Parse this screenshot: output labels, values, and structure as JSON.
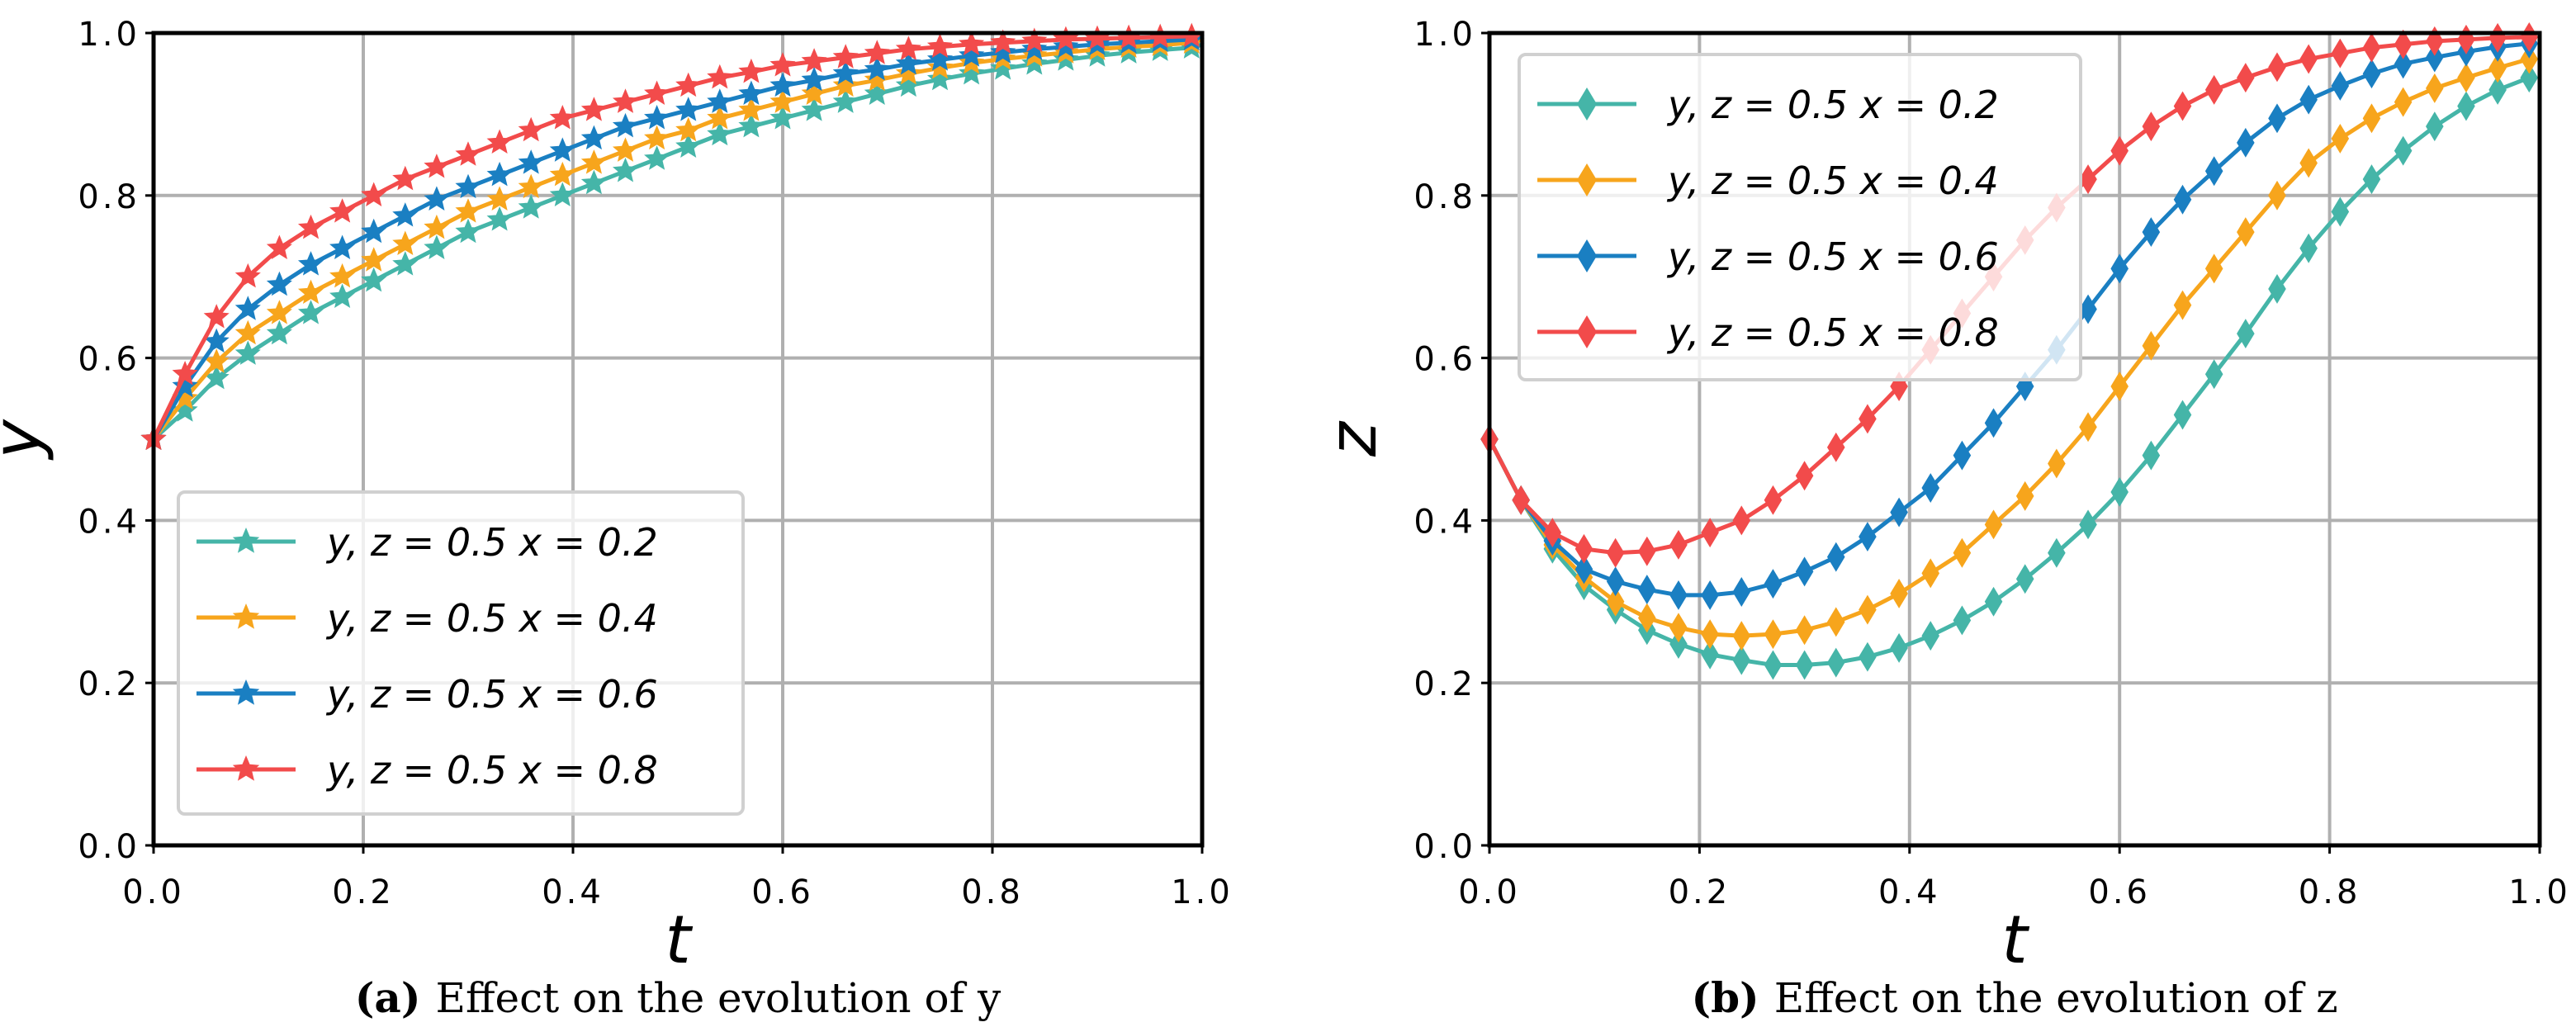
{
  "colors": {
    "teal": "#45b5a8",
    "orange": "#f7a51c",
    "blue": "#1a7fc2",
    "red": "#f24b4b",
    "grid": "#b0b0b0"
  },
  "chart_data": [
    {
      "type": "line",
      "panel": "(a)",
      "title": "Effect on the evolution of y",
      "xlabel": "t",
      "ylabel": "y",
      "xlim": [
        0,
        1
      ],
      "ylim": [
        0,
        1
      ],
      "xticks": [
        "0.0",
        "0.2",
        "0.4",
        "0.6",
        "0.8",
        "1.0"
      ],
      "yticks": [
        "0.0",
        "0.2",
        "0.4",
        "0.6",
        "0.8",
        "1.0"
      ],
      "grid": true,
      "legend_position": "lower-left",
      "marker": "star",
      "t_start": 0,
      "t_step": 0.03,
      "series": [
        {
          "name": "y, z = 0.5  x = 0.2",
          "color": "teal",
          "values": [
            0.5,
            0.535,
            0.575,
            0.605,
            0.63,
            0.655,
            0.675,
            0.695,
            0.715,
            0.735,
            0.755,
            0.77,
            0.785,
            0.8,
            0.815,
            0.83,
            0.845,
            0.86,
            0.875,
            0.885,
            0.895,
            0.905,
            0.915,
            0.925,
            0.935,
            0.943,
            0.95,
            0.956,
            0.962,
            0.967,
            0.972,
            0.976,
            0.979,
            0.982
          ]
        },
        {
          "name": "y, z = 0.5  x = 0.4",
          "color": "orange",
          "values": [
            0.5,
            0.55,
            0.595,
            0.63,
            0.655,
            0.68,
            0.7,
            0.72,
            0.74,
            0.76,
            0.78,
            0.795,
            0.81,
            0.825,
            0.84,
            0.855,
            0.87,
            0.88,
            0.895,
            0.905,
            0.915,
            0.925,
            0.935,
            0.942,
            0.95,
            0.957,
            0.963,
            0.968,
            0.972,
            0.976,
            0.98,
            0.983,
            0.985,
            0.988
          ]
        },
        {
          "name": "y, z = 0.5  x = 0.6",
          "color": "blue",
          "values": [
            0.5,
            0.565,
            0.62,
            0.66,
            0.69,
            0.715,
            0.735,
            0.755,
            0.775,
            0.795,
            0.81,
            0.825,
            0.84,
            0.855,
            0.87,
            0.885,
            0.895,
            0.905,
            0.915,
            0.925,
            0.935,
            0.942,
            0.95,
            0.955,
            0.962,
            0.967,
            0.972,
            0.976,
            0.98,
            0.983,
            0.986,
            0.988,
            0.99,
            0.992
          ]
        },
        {
          "name": "y, z = 0.5  x = 0.8",
          "color": "red",
          "values": [
            0.5,
            0.58,
            0.65,
            0.7,
            0.735,
            0.76,
            0.78,
            0.8,
            0.82,
            0.835,
            0.85,
            0.865,
            0.88,
            0.895,
            0.905,
            0.915,
            0.925,
            0.935,
            0.945,
            0.952,
            0.96,
            0.965,
            0.97,
            0.975,
            0.98,
            0.983,
            0.986,
            0.988,
            0.99,
            0.992,
            0.993,
            0.994,
            0.995,
            0.996
          ]
        }
      ]
    },
    {
      "type": "line",
      "panel": "(b)",
      "title": "Effect on the evolution of z",
      "xlabel": "t",
      "ylabel": "z",
      "xlim": [
        0,
        1
      ],
      "ylim": [
        0,
        1
      ],
      "xticks": [
        "0.0",
        "0.2",
        "0.4",
        "0.6",
        "0.8",
        "1.0"
      ],
      "yticks": [
        "0.0",
        "0.2",
        "0.4",
        "0.6",
        "0.8",
        "1.0"
      ],
      "grid": true,
      "legend_position": "upper-left",
      "marker": "diamond",
      "t_start": 0,
      "t_step": 0.03,
      "series": [
        {
          "name": "y, z = 0.5  x = 0.2",
          "color": "teal",
          "values": [
            0.5,
            0.425,
            0.365,
            0.32,
            0.29,
            0.265,
            0.248,
            0.235,
            0.228,
            0.222,
            0.222,
            0.225,
            0.232,
            0.243,
            0.258,
            0.277,
            0.3,
            0.328,
            0.36,
            0.395,
            0.435,
            0.48,
            0.53,
            0.58,
            0.63,
            0.685,
            0.735,
            0.78,
            0.82,
            0.855,
            0.885,
            0.91,
            0.93,
            0.945
          ]
        },
        {
          "name": "y, z = 0.5  x = 0.4",
          "color": "orange",
          "values": [
            0.5,
            0.425,
            0.37,
            0.33,
            0.3,
            0.28,
            0.268,
            0.26,
            0.258,
            0.26,
            0.265,
            0.275,
            0.29,
            0.31,
            0.335,
            0.36,
            0.395,
            0.43,
            0.47,
            0.515,
            0.565,
            0.615,
            0.665,
            0.71,
            0.755,
            0.8,
            0.84,
            0.87,
            0.895,
            0.915,
            0.932,
            0.945,
            0.957,
            0.968
          ]
        },
        {
          "name": "y, z = 0.5  x = 0.6",
          "color": "blue",
          "values": [
            0.5,
            0.425,
            0.375,
            0.34,
            0.325,
            0.315,
            0.308,
            0.308,
            0.312,
            0.322,
            0.337,
            0.355,
            0.38,
            0.41,
            0.44,
            0.48,
            0.52,
            0.565,
            0.61,
            0.66,
            0.71,
            0.755,
            0.795,
            0.83,
            0.865,
            0.895,
            0.918,
            0.935,
            0.95,
            0.962,
            0.97,
            0.977,
            0.983,
            0.987
          ]
        },
        {
          "name": "y, z = 0.5  x = 0.8",
          "color": "red",
          "values": [
            0.5,
            0.425,
            0.385,
            0.365,
            0.36,
            0.362,
            0.37,
            0.385,
            0.4,
            0.425,
            0.455,
            0.49,
            0.525,
            0.565,
            0.61,
            0.655,
            0.7,
            0.745,
            0.785,
            0.82,
            0.855,
            0.885,
            0.91,
            0.93,
            0.945,
            0.958,
            0.968,
            0.975,
            0.982,
            0.986,
            0.99,
            0.992,
            0.994,
            0.995
          ]
        }
      ]
    }
  ]
}
